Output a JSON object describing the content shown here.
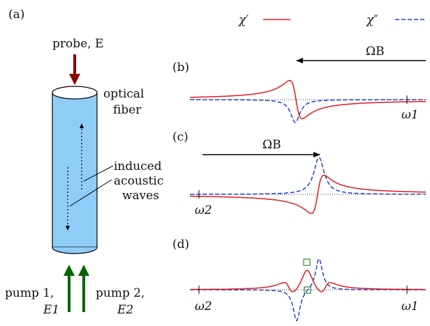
{
  "legend": {
    "chi_real": "χ′",
    "chi_imag": "χ″",
    "chi_real_color": "#e31a1c",
    "chi_imag_color": "#1f3fd6"
  },
  "panels": {
    "a": {
      "label": "(a)",
      "probe": "probe, E",
      "fiber": [
        "optical",
        "fiber"
      ],
      "acoustic": [
        "induced",
        "acoustic",
        "waves"
      ],
      "pump1": [
        "pump 1,",
        "E1"
      ],
      "pump2": [
        "pump 2,",
        "E2"
      ]
    },
    "b": {
      "label": "(b)",
      "arrow": "ΩB",
      "arrow_direction": "left",
      "freq_label": "ω1"
    },
    "c": {
      "label": "(c)",
      "arrow": "ΩB",
      "arrow_direction": "right",
      "freq_label": "ω2"
    },
    "d": {
      "label": "(d)",
      "freq_left": "ω2",
      "freq_right": "ω1"
    }
  },
  "colors": {
    "fiber_fill": "#8fcdf7",
    "probe_arrow": "#8b0000",
    "pump_arrow": "#006400",
    "marker": "#2e8b2e"
  }
}
